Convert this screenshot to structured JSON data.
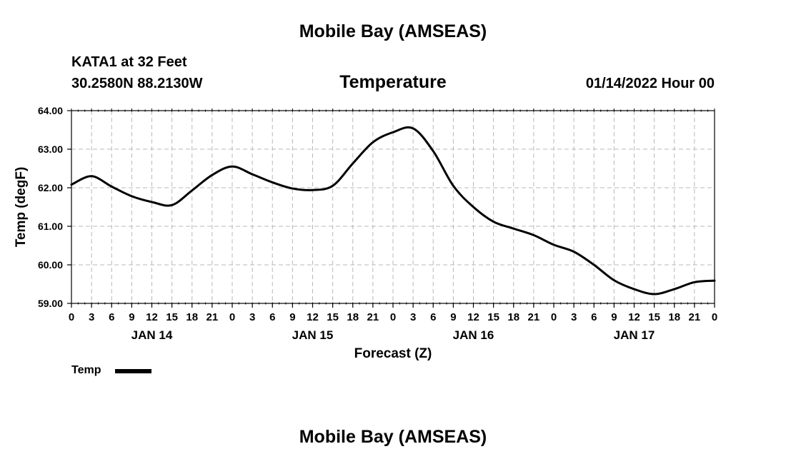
{
  "header": {
    "title": "Mobile Bay (AMSEAS)",
    "station": "KATA1 at 32 Feet",
    "coordinates": "30.2580N  88.2130W",
    "variable": "Temperature",
    "timestamp": "01/14/2022 Hour 00"
  },
  "footer": {
    "title": "Mobile Bay (AMSEAS)"
  },
  "legend": {
    "label": "Temp"
  },
  "chart_data": {
    "type": "line",
    "title": "Temperature",
    "xlabel": "Forecast (Z)",
    "ylabel": "Temp (degF)",
    "xlim": [
      0,
      96
    ],
    "ylim": [
      59.0,
      64.0
    ],
    "y_ticks": [
      "59.00",
      "60.00",
      "61.00",
      "62.00",
      "63.00",
      "64.00"
    ],
    "x_tick_labels": [
      "0",
      "3",
      "6",
      "9",
      "12",
      "15",
      "18",
      "21",
      "0",
      "3",
      "6",
      "9",
      "12",
      "15",
      "18",
      "21",
      "0",
      "3",
      "6",
      "9",
      "12",
      "15",
      "18",
      "21",
      "0",
      "3",
      "6",
      "9",
      "12",
      "15",
      "18",
      "21",
      "0"
    ],
    "day_labels": [
      {
        "label": "JAN 14",
        "center_hour": 12
      },
      {
        "label": "JAN 15",
        "center_hour": 36
      },
      {
        "label": "JAN 16",
        "center_hour": 60
      },
      {
        "label": "JAN 17",
        "center_hour": 84
      }
    ],
    "grid": true,
    "series": [
      {
        "name": "Temp",
        "color": "#000000",
        "x": [
          0,
          3,
          6,
          9,
          12,
          15,
          18,
          21,
          24,
          27,
          30,
          33,
          36,
          39,
          42,
          45,
          48,
          51,
          54,
          57,
          60,
          63,
          66,
          69,
          72,
          75,
          78,
          81,
          84,
          87,
          90,
          93,
          96
        ],
        "values": [
          62.08,
          62.3,
          62.03,
          61.78,
          61.63,
          61.55,
          61.93,
          62.33,
          62.55,
          62.35,
          62.14,
          61.98,
          61.94,
          62.05,
          62.63,
          63.18,
          63.44,
          63.54,
          62.95,
          62.05,
          61.5,
          61.12,
          60.94,
          60.77,
          60.52,
          60.34,
          60.0,
          59.6,
          59.37,
          59.24,
          59.37,
          59.55,
          59.59
        ]
      }
    ]
  }
}
